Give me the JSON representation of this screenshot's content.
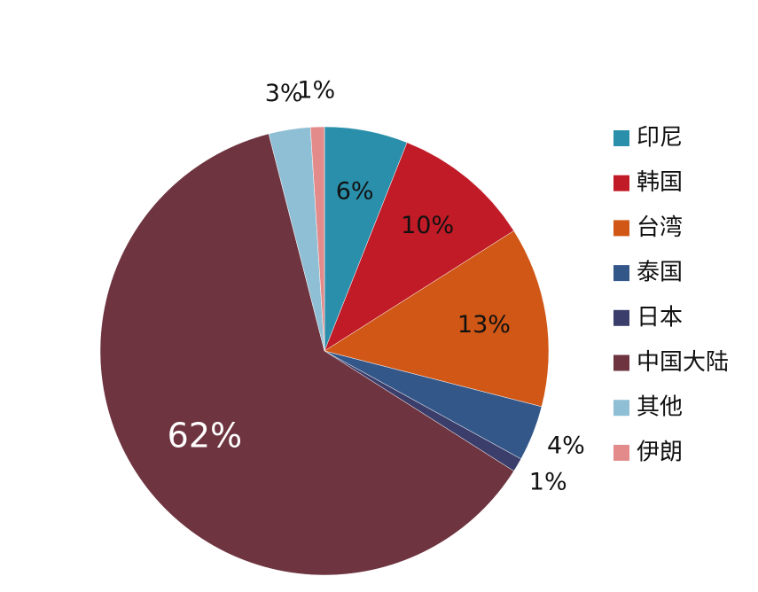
{
  "chart_data": {
    "type": "pie",
    "categories": [
      "印尼",
      "韩国",
      "台湾",
      "泰国",
      "日本",
      "中国大陆",
      "其他",
      "伊朗"
    ],
    "values": [
      6,
      10,
      13,
      4,
      1,
      62,
      3,
      1
    ],
    "value_labels": [
      "6%",
      "10%",
      "13%",
      "4%",
      "1%",
      "62%",
      "3%",
      "1%"
    ],
    "colors": [
      "#2a8fab",
      "#c01b27",
      "#d05716",
      "#34578a",
      "#3b3e6b",
      "#6e3440",
      "#8fbfd4",
      "#e38b8b"
    ],
    "legend": "right"
  }
}
